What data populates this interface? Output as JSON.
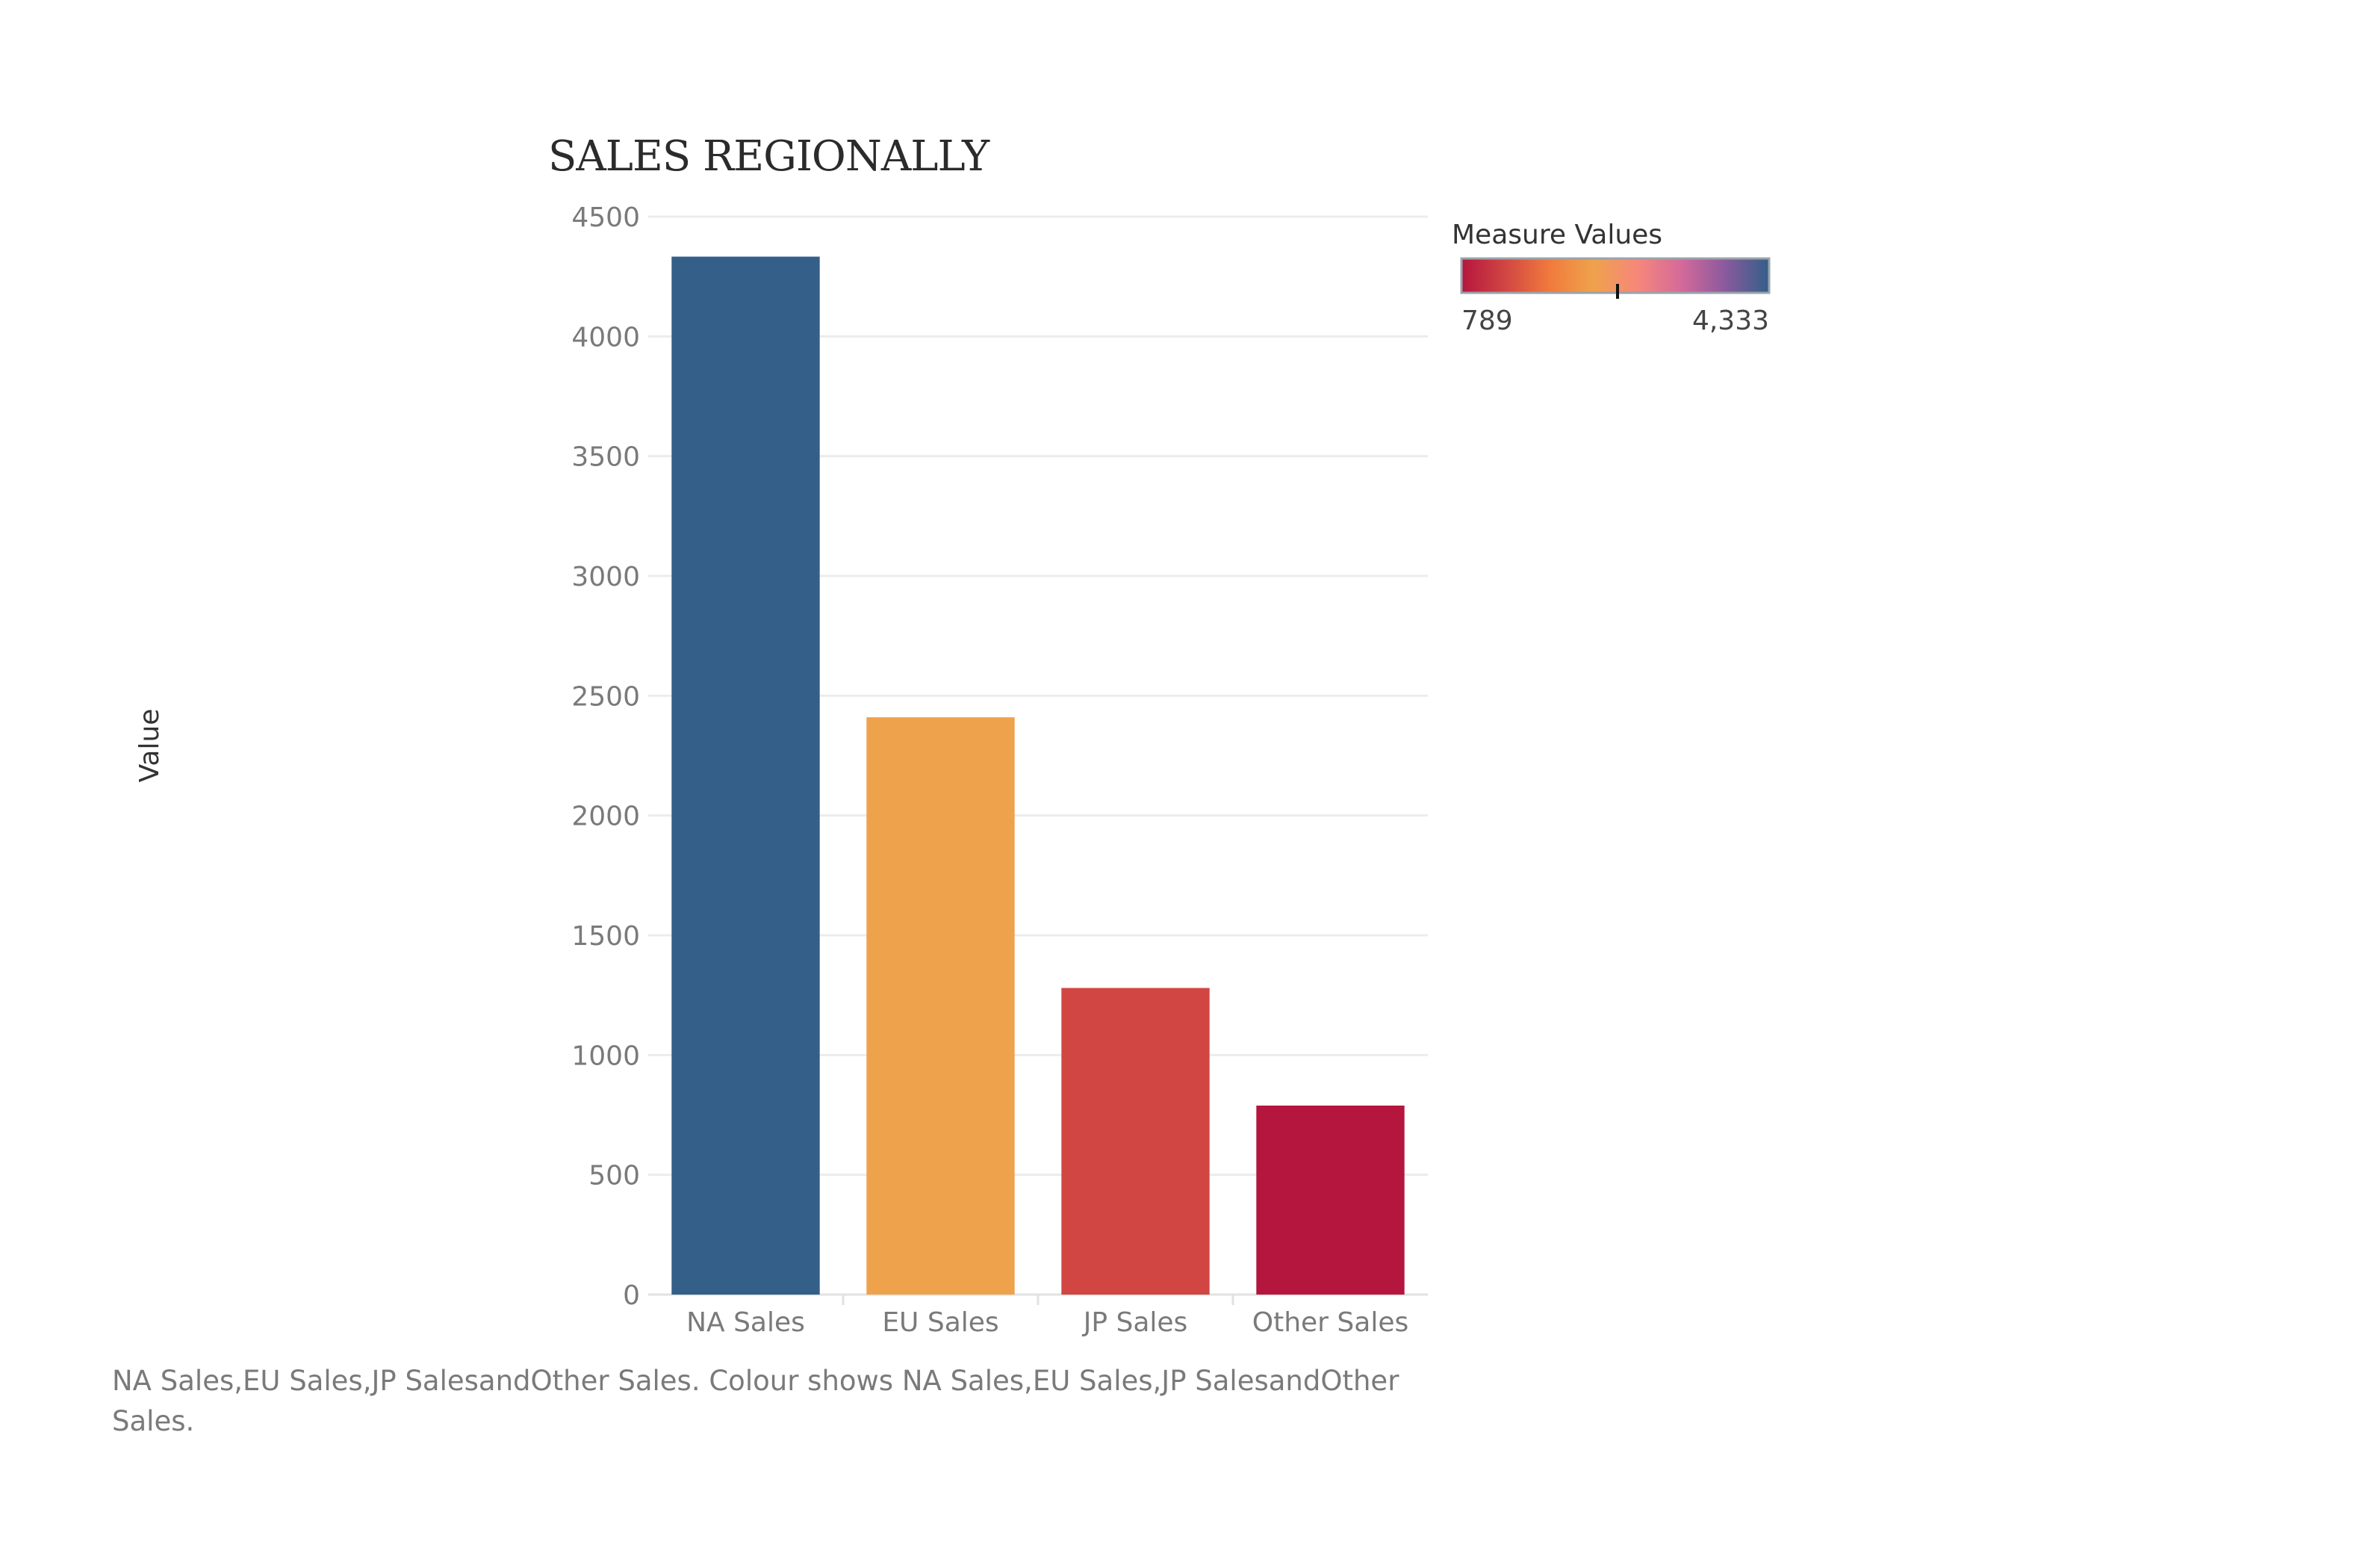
{
  "chart_data": {
    "type": "bar",
    "title": "SALES REGIONALLY",
    "ylabel": "Value",
    "xlabel": "",
    "categories": [
      "NA Sales",
      "EU Sales",
      "JP Sales",
      "Other Sales"
    ],
    "values": [
      4333,
      2410,
      1280,
      789
    ],
    "bar_colors": [
      "#335f88",
      "#efa24c",
      "#d14643",
      "#b5163e"
    ],
    "ylim": [
      0,
      4500
    ],
    "yticks": [
      0,
      500,
      1000,
      1500,
      2000,
      2500,
      3000,
      3500,
      4000,
      4500
    ],
    "ytick_labels": [
      "0",
      "500",
      "1000",
      "1500",
      "2000",
      "2500",
      "3000",
      "3500",
      "4000",
      "4500"
    ],
    "grid": true,
    "legend": {
      "title": "Measure Values",
      "min_label": "789",
      "max_label": "4,333",
      "min_value": 789,
      "max_value": 4333,
      "placement": "top-right",
      "gradient_colors": [
        "#b5163e",
        "#d14643",
        "#f07a3c",
        "#efa24c",
        "#f6877a",
        "#d46a9a",
        "#8a5a9e",
        "#335f88"
      ]
    },
    "caption": {
      "line1": "NA Sales,EU Sales,JP SalesandOther Sales. Colour shows NA Sales,EU Sales,JP SalesandOther",
      "line2": "Sales."
    }
  }
}
